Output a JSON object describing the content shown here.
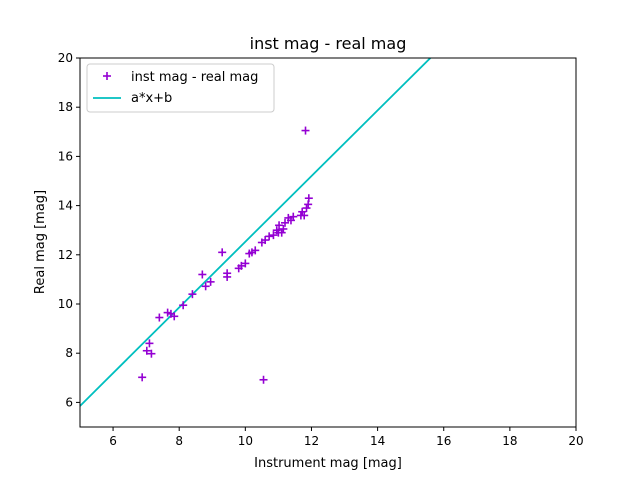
{
  "chart_data": {
    "type": "scatter",
    "title": "inst mag - real mag",
    "xlabel": "Instrument mag [mag]",
    "ylabel": "Real mag [mag]",
    "xlim": [
      5,
      20
    ],
    "ylim": [
      5,
      20
    ],
    "xticks": [
      "6",
      "8",
      "10",
      "12",
      "14",
      "16",
      "18",
      "20"
    ],
    "yticks": [
      "6",
      "8",
      "10",
      "12",
      "14",
      "16",
      "18",
      "20"
    ],
    "grid": false,
    "legend_position": "top-left",
    "series": [
      {
        "name": "inst mag - real mag",
        "kind": "scatter",
        "marker": "plus",
        "color": "#9400d3",
        "points": [
          [
            6.88,
            7.02
          ],
          [
            7.02,
            8.1
          ],
          [
            7.1,
            8.4
          ],
          [
            7.16,
            7.98
          ],
          [
            7.4,
            9.45
          ],
          [
            7.65,
            9.65
          ],
          [
            7.75,
            9.6
          ],
          [
            7.85,
            9.5
          ],
          [
            8.12,
            9.95
          ],
          [
            8.4,
            10.4
          ],
          [
            8.7,
            11.2
          ],
          [
            8.8,
            10.72
          ],
          [
            8.95,
            10.9
          ],
          [
            9.3,
            12.1
          ],
          [
            9.45,
            11.1
          ],
          [
            9.45,
            11.25
          ],
          [
            9.8,
            11.45
          ],
          [
            9.88,
            11.55
          ],
          [
            10.0,
            11.65
          ],
          [
            10.12,
            12.05
          ],
          [
            10.2,
            12.1
          ],
          [
            10.3,
            12.18
          ],
          [
            10.5,
            12.5
          ],
          [
            10.55,
            6.92
          ],
          [
            10.6,
            12.6
          ],
          [
            10.72,
            12.75
          ],
          [
            10.85,
            12.8
          ],
          [
            10.95,
            13.0
          ],
          [
            11.0,
            12.9
          ],
          [
            11.02,
            13.2
          ],
          [
            11.1,
            12.9
          ],
          [
            11.15,
            13.05
          ],
          [
            11.2,
            13.3
          ],
          [
            11.3,
            13.5
          ],
          [
            11.38,
            13.4
          ],
          [
            11.45,
            13.55
          ],
          [
            11.68,
            13.6
          ],
          [
            11.72,
            13.75
          ],
          [
            11.78,
            13.6
          ],
          [
            11.82,
            17.05
          ],
          [
            11.85,
            13.9
          ],
          [
            11.9,
            14.05
          ],
          [
            11.92,
            14.3
          ]
        ]
      },
      {
        "name": "a*x+b",
        "kind": "line",
        "color": "#00bfbf",
        "slope": 1.335,
        "intercept": -0.82
      }
    ]
  }
}
